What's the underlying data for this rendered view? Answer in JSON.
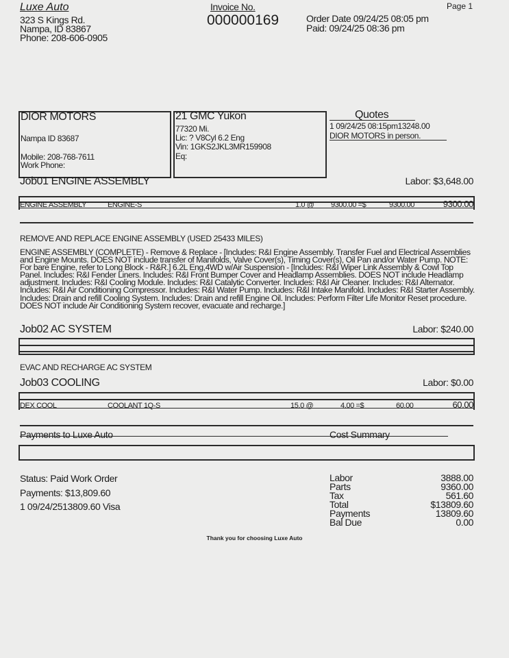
{
  "shop": {
    "name": "Luxe Auto",
    "address1": "323 S Kings Rd.",
    "address2": "Nampa, ID 83867",
    "phone": "Phone: 208-606-0905"
  },
  "invoice": {
    "label": "Invoice No.",
    "number": "000000169",
    "order_date": "Order Date 09/24/25 08:05 pm",
    "paid": "Paid: 09/24/25 08:36 pm",
    "page": "Page 1"
  },
  "customer": {
    "name": "DIOR MOTORS",
    "city": "Nampa  ID  83687",
    "mobile": "Mobile: 208-768-7611",
    "work_phone": "Work Phone:"
  },
  "vehicle": {
    "name": "21 GMC Yukon",
    "mileage": "77320 Mi.",
    "lic": "Lic: ? V8Cyl 6.2 Eng",
    "vin": "Vin: 1GKS2JKL3MR159908",
    "eq": "Eq:"
  },
  "quotes": {
    "title": "Quotes",
    "line1": "1 09/24/25 08:15pm13248.00",
    "line2": "DIOR MOTORS  in person."
  },
  "jobs": [
    {
      "title": "Job01 ENGINE ASSEMBLY",
      "labor": "Labor: $3,648.00",
      "part": {
        "name": "ENGINE ASSEMBLY",
        "code": "ENGINE-S",
        "qty": "1.0 @",
        "price": "9300.00 =$",
        "ext": "9300.00",
        "total": "9300.00"
      },
      "heading": "REMOVE AND REPLACE ENGINE ASSEMBLY (USED 25433 MILES)",
      "description": "ENGINE ASSEMBLY (COMPLETE) - Remove & Replace - [Includes: R&I Engine Assembly. Transfer Fuel and Electrical Assemblies and Engine Mounts. DOES NOT include transfer of Manifolds, Valve Cover(s), Timing Cover(s), Oil Pan and/or Water Pump. NOTE: For bare Engine, refer to Long Block - R&R.] 6.2L Eng,4WD w/Air Suspension - [Includes: R&I Wiper Link Assembly & Cowl Top Panel. Includes: R&I Fender Liners. Includes: R&I Front Bumper Cover and Headlamp Assemblies. DOES NOT include Headlamp adjustment. Includes: R&I Cooling Module. Includes: R&I Catalytic Converter. Includes: R&I Air Cleaner. Includes: R&I Alternator. Includes: R&I Air Conditioning Compressor. Includes: R&I Water Pump. Includes: R&I Intake Manifold. Includes: R&I Starter Assembly. Includes: Drain and refill Cooling System. Includes: Drain and refill Engine Oil. Includes: Perform Filter Life Monitor Reset procedure. DOES NOT include Air Conditioning System recover, evacuate and recharge.]"
    },
    {
      "title": "Job02 AC SYSTEM",
      "labor": "Labor: $240.00",
      "heading": "EVAC AND RECHARGE AC SYSTEM"
    },
    {
      "title": "Job03 COOLING",
      "labor": "Labor: $0.00",
      "part": {
        "name": "DEX COOL",
        "code": "COOLANT 1Q-S",
        "qty": "15.0 @",
        "price": "4.00 =$",
        "ext": "60.00",
        "total": "60.00"
      }
    }
  ],
  "payments_section": {
    "title": "Payments to Luxe Auto",
    "status": "Status: Paid Work Order",
    "payments": "Payments: $13,809.60",
    "entry": "1 09/24/2513809.60 Visa"
  },
  "cost_summary": {
    "title": "Cost Summary",
    "rows": [
      {
        "label": "Labor",
        "value": "3888.00"
      },
      {
        "label": "Parts",
        "value": "9360.00"
      },
      {
        "label": "Tax",
        "value": "561.60"
      },
      {
        "label": "Total",
        "value": "$13809.60"
      },
      {
        "label": "Payments",
        "value": "13809.60"
      },
      {
        "label": "Bal Due",
        "value": "0.00"
      }
    ]
  },
  "footer": {
    "thanks": "Thank you for choosing Luxe Auto"
  }
}
